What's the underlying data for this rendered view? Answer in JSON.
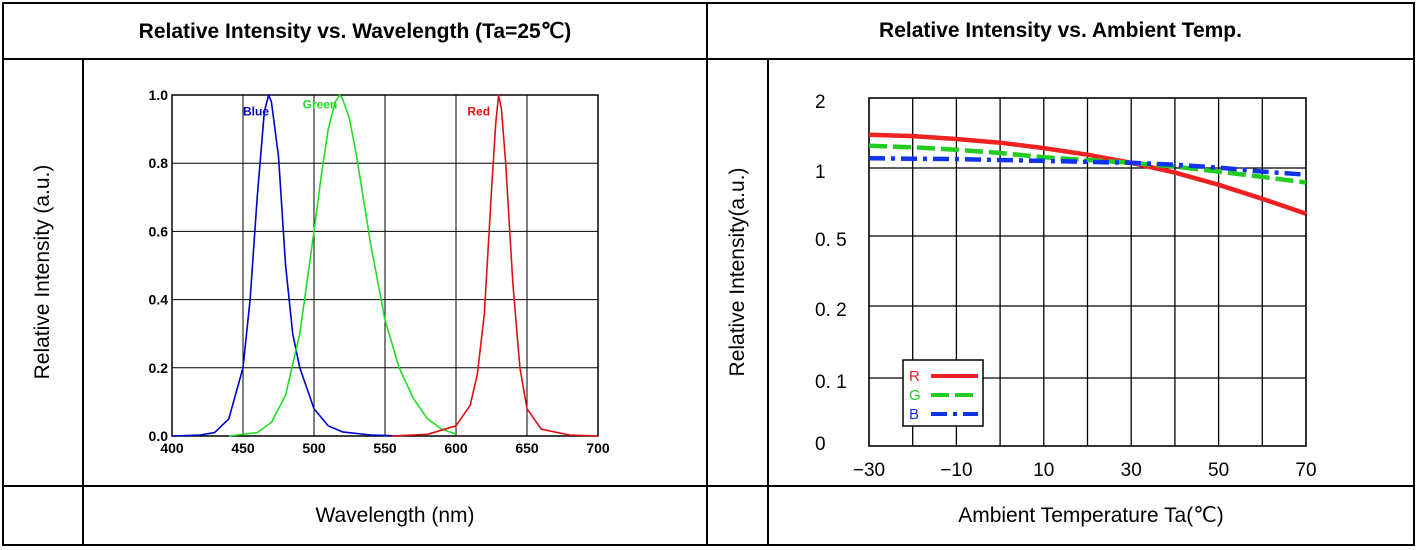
{
  "left_panel": {
    "title": "Relative Intensity vs. Wavelength (Ta=25℃)",
    "ylabel": "Relative Intensity (a.u.)",
    "xlabel": "Wavelength (nm)"
  },
  "right_panel": {
    "title": "Relative Intensity vs. Ambient Temp.",
    "ylabel": "Relative Intensity(a.u.)",
    "xlabel": "Ambient Temperature Ta(℃)"
  },
  "chart_data": [
    {
      "type": "line",
      "title": "Relative Intensity vs. Wavelength (Ta=25℃)",
      "xlabel": "Wavelength (nm)",
      "ylabel": "Relative Intensity (a.u.)",
      "xlim": [
        400,
        700
      ],
      "ylim": [
        0,
        1.0
      ],
      "xticks": [
        400,
        450,
        500,
        550,
        600,
        650,
        700
      ],
      "yticks": [
        0.0,
        0.2,
        0.4,
        0.6,
        0.8,
        1.0
      ],
      "xtick_labels": [
        "400",
        "450",
        "500",
        "550",
        "600",
        "650",
        "700"
      ],
      "ytick_labels": [
        "0.0",
        "0.2",
        "0.4",
        "0.6",
        "0.8",
        "1.0"
      ],
      "grid": true,
      "series": [
        {
          "name": "Blue",
          "color": "#0000cc",
          "x": [
            400,
            420,
            430,
            440,
            450,
            455,
            460,
            465,
            468,
            470,
            475,
            480,
            485,
            490,
            500,
            510,
            520,
            540,
            560
          ],
          "y": [
            0,
            0.003,
            0.01,
            0.05,
            0.2,
            0.4,
            0.7,
            0.95,
            1.0,
            0.98,
            0.82,
            0.5,
            0.3,
            0.2,
            0.08,
            0.03,
            0.012,
            0.003,
            0
          ]
        },
        {
          "name": "Green",
          "color": "#22dd22",
          "x": [
            440,
            460,
            470,
            480,
            490,
            500,
            505,
            510,
            515,
            518,
            520,
            525,
            530,
            540,
            550,
            560,
            570,
            580,
            590,
            600
          ],
          "y": [
            0,
            0.01,
            0.04,
            0.12,
            0.3,
            0.6,
            0.76,
            0.9,
            0.98,
            1.0,
            0.99,
            0.93,
            0.82,
            0.56,
            0.34,
            0.2,
            0.11,
            0.05,
            0.02,
            0.006
          ]
        },
        {
          "name": "Red",
          "color": "#dd1111",
          "x": [
            555,
            580,
            600,
            610,
            615,
            620,
            625,
            628,
            630,
            632,
            635,
            640,
            645,
            650,
            660,
            680,
            700
          ],
          "y": [
            0,
            0.005,
            0.03,
            0.09,
            0.18,
            0.36,
            0.72,
            0.92,
            1.0,
            0.96,
            0.8,
            0.45,
            0.2,
            0.08,
            0.02,
            0.003,
            0
          ]
        }
      ]
    },
    {
      "type": "line",
      "title": "Relative Intensity vs. Ambient Temp.",
      "xlabel": "Ambient Temperature Ta(℃)",
      "ylabel": "Relative Intensity(a.u.)",
      "xlim": [
        -30,
        70
      ],
      "yscale": "log",
      "xticks": [
        -30,
        -10,
        10,
        30,
        50,
        70
      ],
      "yticks": [
        0,
        0.1,
        0.2,
        0.5,
        1,
        2
      ],
      "xtick_labels": [
        "−30",
        "−10",
        "10",
        "30",
        "50",
        "70"
      ],
      "ytick_labels": [
        "0",
        "0. 1",
        "0. 2",
        "0. 5",
        "1",
        "2"
      ],
      "grid": true,
      "legend": "bottom-left",
      "series": [
        {
          "name": "R",
          "color": "#ee2222",
          "x": [
            -30,
            -20,
            -10,
            0,
            10,
            20,
            30,
            40,
            50,
            60,
            70
          ],
          "y": [
            1.35,
            1.33,
            1.29,
            1.24,
            1.17,
            1.09,
            1.0,
            0.9,
            0.79,
            0.68,
            0.58
          ]
        },
        {
          "name": "G",
          "color": "#22cc22",
          "x": [
            -30,
            -20,
            -10,
            0,
            10,
            20,
            30,
            40,
            50,
            60,
            70
          ],
          "y": [
            1.2,
            1.18,
            1.15,
            1.11,
            1.06,
            1.03,
            1.0,
            0.96,
            0.91,
            0.86,
            0.81
          ]
        },
        {
          "name": "B",
          "color": "#1133ee",
          "x": [
            -30,
            -20,
            -10,
            0,
            10,
            20,
            30,
            40,
            50,
            60,
            70
          ],
          "y": [
            1.05,
            1.045,
            1.04,
            1.03,
            1.02,
            1.01,
            1.0,
            0.98,
            0.95,
            0.91,
            0.88
          ]
        }
      ]
    }
  ]
}
